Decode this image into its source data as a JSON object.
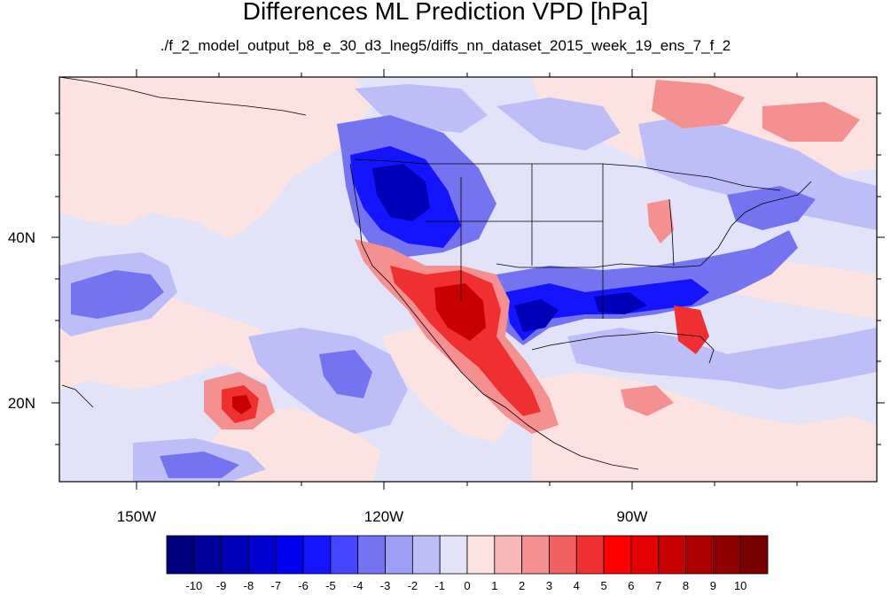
{
  "figure": {
    "title": "Differences ML Prediction VPD [hPa]",
    "subtitle": "./f_2_model_output_b8_e_30_d3_lneg5/diffs_nn_dataset_2015_week_19_ens_7_f_2"
  },
  "axes": {
    "longitude_ticks": [
      {
        "label": "150W",
        "value": -150
      },
      {
        "label": "120W",
        "value": -120
      },
      {
        "label": "90W",
        "value": -90
      }
    ],
    "latitude_ticks": [
      {
        "label": "40N",
        "value": 40
      },
      {
        "label": "20N",
        "value": 20
      }
    ],
    "lon_range": [
      -159.5,
      -60
    ],
    "lat_range": [
      11,
      60
    ]
  },
  "colorbar": {
    "levels": [
      "-10",
      "-9",
      "-8",
      "-7",
      "-6",
      "-5",
      "-4",
      "-3",
      "-2",
      "-1",
      "0",
      "1",
      "2",
      "3",
      "4",
      "5",
      "6",
      "7",
      "8",
      "9",
      "10"
    ],
    "colors": [
      "#00007f",
      "#00009b",
      "#0000b7",
      "#0000d3",
      "#0000ef",
      "#1414ff",
      "#4545ff",
      "#7474f0",
      "#9e9ef5",
      "#bdbdf8",
      "#e2e2f8",
      "#fde2e2",
      "#f8b8b8",
      "#f59090",
      "#f26262",
      "#f03030",
      "#ff0000",
      "#e20000",
      "#c80000",
      "#ac0000",
      "#900000",
      "#7a0000"
    ]
  },
  "colors": {
    "background_field": "#e2e2f8",
    "coast_lines": "#000000"
  }
}
